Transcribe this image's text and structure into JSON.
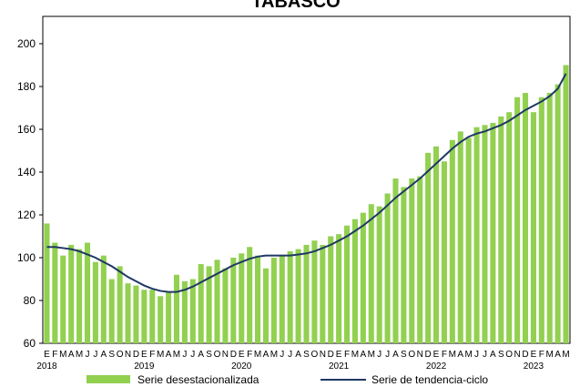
{
  "chart_data": {
    "type": "bar",
    "title": "TABASCO",
    "categories": [
      "E",
      "F",
      "M",
      "A",
      "M",
      "J",
      "J",
      "A",
      "S",
      "O",
      "N",
      "D",
      "E",
      "F",
      "M",
      "A",
      "M",
      "J",
      "J",
      "A",
      "S",
      "O",
      "N",
      "D",
      "E",
      "F",
      "M",
      "A",
      "M",
      "J",
      "J",
      "A",
      "S",
      "O",
      "N",
      "D",
      "E",
      "F",
      "M",
      "A",
      "M",
      "J",
      "J",
      "A",
      "S",
      "O",
      "N",
      "D",
      "E",
      "F",
      "M",
      "A",
      "M",
      "J",
      "J",
      "A",
      "S",
      "O",
      "N",
      "D",
      "E",
      "F",
      "M",
      "A",
      "M"
    ],
    "years": [
      "2018",
      "2019",
      "2020",
      "2021",
      "2022",
      "2023"
    ],
    "series": [
      {
        "name": "Serie desestacionalizada",
        "type": "bar",
        "color": "#92d050",
        "values": [
          116,
          107,
          101,
          106,
          104,
          107,
          98,
          101,
          90,
          96,
          88,
          87,
          85,
          85,
          82,
          84,
          92,
          89,
          90,
          97,
          96,
          99,
          95,
          100,
          102,
          105,
          101,
          95,
          100,
          101,
          103,
          104,
          106,
          108,
          106,
          110,
          111,
          115,
          118,
          121,
          125,
          124,
          130,
          137,
          133,
          137,
          138,
          149,
          152,
          145,
          155,
          159,
          156,
          161,
          162,
          163,
          166,
          168,
          175,
          177,
          168,
          175,
          177,
          181,
          190
        ]
      },
      {
        "name": "Serie de tendencia-ciclo",
        "type": "line",
        "color": "#1f3864",
        "values": [
          105,
          105,
          104.5,
          104,
          103,
          101.5,
          100,
          98,
          96,
          93.5,
          91,
          89,
          87,
          85.5,
          84.5,
          84,
          84,
          85,
          86.5,
          88.5,
          90.5,
          92.5,
          94.5,
          96.5,
          98,
          99.5,
          100.5,
          101,
          101,
          101,
          101,
          101.5,
          102,
          103,
          104.5,
          106,
          108,
          110,
          112.5,
          115,
          118,
          121,
          124.5,
          128,
          131,
          134,
          137,
          140.5,
          144,
          147.5,
          151,
          154,
          156.5,
          158,
          159,
          160.5,
          162,
          164,
          166.5,
          169,
          171,
          173,
          175.5,
          179,
          186
        ]
      }
    ],
    "ylim": [
      60,
      200
    ],
    "yticks": [
      60,
      80,
      100,
      120,
      140,
      160,
      180,
      200
    ],
    "grid": false
  }
}
